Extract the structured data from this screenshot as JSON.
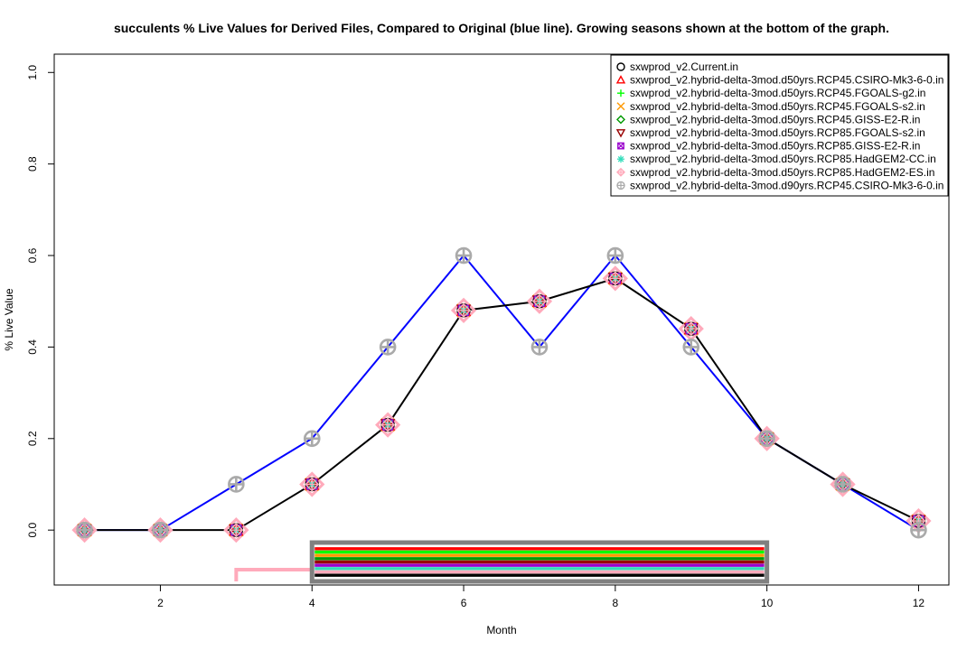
{
  "chart_data": {
    "type": "line",
    "title": "succulents      % Live Values for Derived Files, Compared to Original (blue line). Growing seasons shown at the bottom of the graph.",
    "xlabel": "Month",
    "ylabel": "% Live Value",
    "xlim": [
      0.6,
      12.4
    ],
    "ylim": [
      -0.12,
      1.04
    ],
    "x_ticks": [
      2,
      4,
      6,
      8,
      10,
      12
    ],
    "y_ticks": [
      0.0,
      0.2,
      0.4,
      0.6,
      0.8,
      1.0
    ],
    "y_tick_labels": [
      "0.0",
      "0.2",
      "0.4",
      "0.6",
      "0.8",
      "1.0"
    ],
    "months": [
      1,
      2,
      3,
      4,
      5,
      6,
      7,
      8,
      9,
      10,
      11,
      12
    ],
    "original": {
      "color": "#0000ff",
      "values": [
        0.0,
        0.0,
        0.1,
        0.2,
        0.4,
        0.6,
        0.4,
        0.6,
        0.4,
        0.2,
        0.1,
        0.0
      ]
    },
    "derived_mean": {
      "color": "#000000",
      "values": [
        0.0,
        0.0,
        0.0,
        0.1,
        0.23,
        0.48,
        0.5,
        0.55,
        0.44,
        0.2,
        0.1,
        0.02
      ]
    },
    "legend": {
      "placement": "top-right",
      "entries": [
        {
          "label": "sxwprod_v2.Current.in",
          "color": "#000000",
          "symbol": "circle"
        },
        {
          "label": "sxwprod_v2.hybrid-delta-3mod.d50yrs.RCP45.CSIRO-Mk3-6-0.in",
          "color": "#ff0000",
          "symbol": "triangle"
        },
        {
          "label": "sxwprod_v2.hybrid-delta-3mod.d50yrs.RCP45.FGOALS-g2.in",
          "color": "#00ff00",
          "symbol": "plus"
        },
        {
          "label": "sxwprod_v2.hybrid-delta-3mod.d50yrs.RCP45.FGOALS-s2.in",
          "color": "#ff9900",
          "symbol": "cross"
        },
        {
          "label": "sxwprod_v2.hybrid-delta-3mod.d50yrs.RCP45.GISS-E2-R.in",
          "color": "#009900",
          "symbol": "diamond"
        },
        {
          "label": "sxwprod_v2.hybrid-delta-3mod.d50yrs.RCP85.FGOALS-s2.in",
          "color": "#990000",
          "symbol": "triangle-down"
        },
        {
          "label": "sxwprod_v2.hybrid-delta-3mod.d50yrs.RCP85.GISS-E2-R.in",
          "color": "#9900cc",
          "symbol": "square-x"
        },
        {
          "label": "sxwprod_v2.hybrid-delta-3mod.d50yrs.RCP85.HadGEM2-CC.in",
          "color": "#33ddbb",
          "symbol": "asterisk"
        },
        {
          "label": "sxwprod_v2.hybrid-delta-3mod.d50yrs.RCP85.HadGEM2-ES.in",
          "color": "#ffaabb",
          "symbol": "diamond-plus"
        },
        {
          "label": "sxwprod_v2.hybrid-delta-3mod.d90yrs.RCP45.CSIRO-Mk3-6-0.in",
          "color": "#aaaaaa",
          "symbol": "circle-plus"
        }
      ]
    },
    "growing_seasons": {
      "start_month": 4,
      "end_month": 10,
      "bar_colors": [
        "#808080",
        "#ff0000",
        "#00ff00",
        "#ff9900",
        "#009900",
        "#990000",
        "#9900cc",
        "#33ddbb",
        "#ffaabb",
        "#000000"
      ],
      "pink_season_start_month": 3,
      "pink_color": "#ffaabb"
    }
  }
}
